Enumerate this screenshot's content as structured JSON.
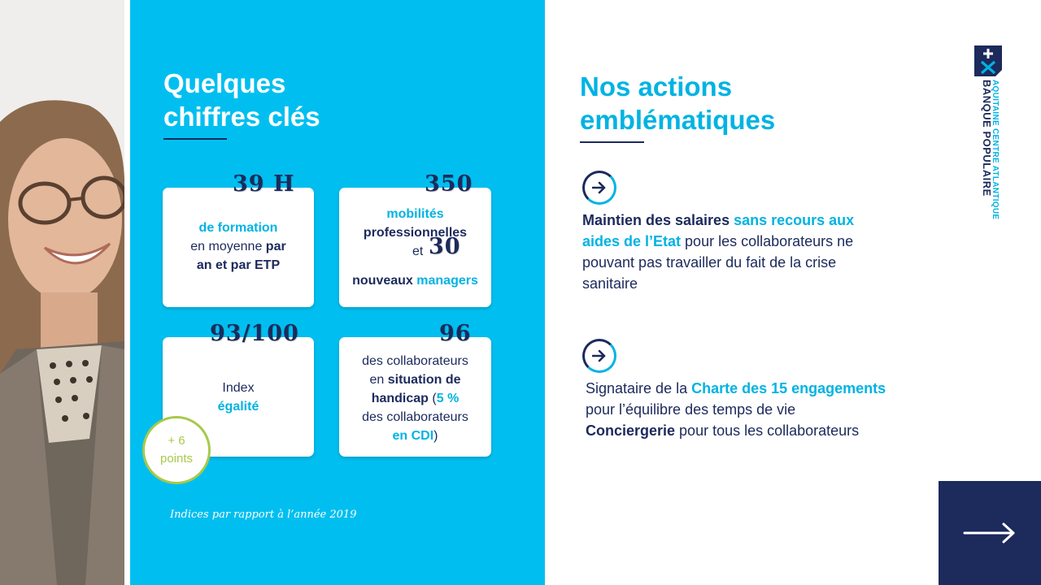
{
  "left_panel": {
    "title_line1": "Quelques",
    "title_line2": "chiffres clés",
    "card1": {
      "big": "39 H",
      "line1": "de formation",
      "line2a": "en moyenne ",
      "line2b": "par",
      "line3": "an et par ETP"
    },
    "card2": {
      "big1": "350",
      "line1": "mobilités",
      "line2": "professionnelles",
      "et": "et",
      "big2": "30",
      "line3a": "nouveaux ",
      "line3b": "managers"
    },
    "card3": {
      "big": "93/100",
      "line1": "Index",
      "line2": "égalité"
    },
    "card4": {
      "big": "96",
      "line1": "des collaborateurs",
      "line2a": "en ",
      "line2b": "situation de",
      "line3a": "handicap",
      "line3b": " (",
      "line3c": "5 %",
      "line4": "des collaborateurs",
      "line5a": "en CDI",
      "line5b": ")"
    },
    "badge_line1": "+ 6",
    "badge_line2": "points",
    "footnote": "Indices par rapport à l’année 2019"
  },
  "right_panel": {
    "title_line1": "Nos actions",
    "title_line2": "emblématiques",
    "action1": {
      "a": "Maintien des salaires ",
      "b": "sans recours aux aides de l’Etat",
      "c": " pour les collaborateurs ne pouvant pas travailler du fait de la crise sanitaire"
    },
    "action2": {
      "l1a": "Signataire de la ",
      "l1b": "Charte des 15 engagements",
      "l2": "pour l’équilibre des temps de vie",
      "l3a": "Conciergerie",
      "l3b": " pour tous les collaborateurs"
    }
  },
  "logo": {
    "line1": "BANQUE POPULAIRE",
    "line2": "AQUITAINE CENTRE ATLANTIQUE"
  },
  "icons": {
    "action_arrow": "arrow-right-icon",
    "next": "long-arrow-right-icon",
    "logo": "banque-populaire-logo-icon"
  },
  "colors": {
    "blue_panel": "#00bff0",
    "navy": "#1c2a5c",
    "cyan_text": "#00b3e3",
    "badge_green": "#a8c94a"
  }
}
